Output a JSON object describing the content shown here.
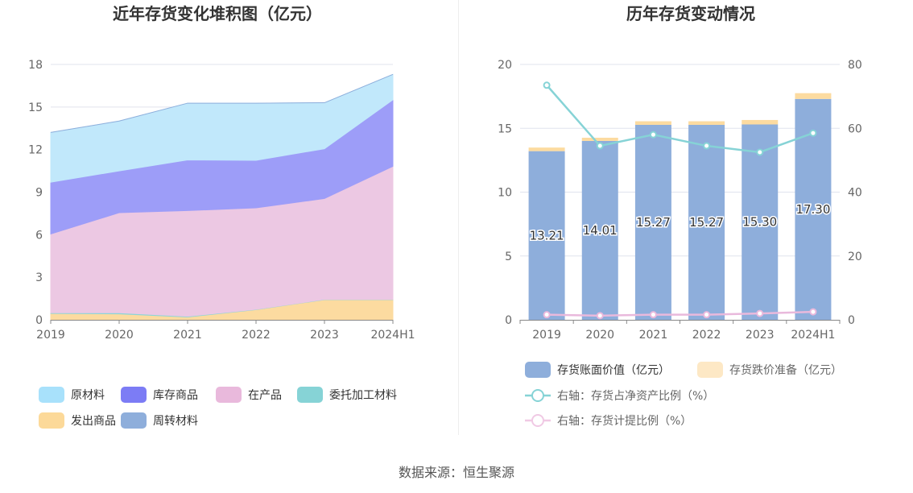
{
  "source_text": "数据来源：恒生聚源",
  "chart_data": [
    {
      "type": "area",
      "stacked": true,
      "title": "近年存货变化堆积图（亿元）",
      "categories": [
        "2019",
        "2020",
        "2021",
        "2022",
        "2023",
        "2024H1"
      ],
      "ylim": [
        0,
        18
      ],
      "yticks": [
        0,
        3,
        6,
        9,
        12,
        15,
        18
      ],
      "legend_position": "bottom",
      "series": [
        {
          "name": "发出商品",
          "color": "#fcdba0",
          "values": [
            0.45,
            0.42,
            0.2,
            0.72,
            1.42,
            1.42
          ]
        },
        {
          "name": "委托加工材料",
          "color": "#8dd5d8",
          "values": [
            0.05,
            0.08,
            0.05,
            0.02,
            0.02,
            0.02
          ]
        },
        {
          "name": "在产品",
          "color": "#ecc8e3",
          "values": [
            5.55,
            7.05,
            7.45,
            7.15,
            7.11,
            9.38
          ]
        },
        {
          "name": "库存商品",
          "color": "#9d9df8",
          "values": [
            3.65,
            2.95,
            3.57,
            3.35,
            3.51,
            4.69
          ]
        },
        {
          "name": "原材料",
          "color": "#c1e8fb",
          "values": [
            3.51,
            3.51,
            4.0,
            4.03,
            3.24,
            1.79
          ]
        },
        {
          "name": "周转材料",
          "color": "#8eaedb",
          "values": [
            0,
            0,
            0,
            0,
            0,
            0
          ]
        }
      ],
      "legend_order": [
        "原材料",
        "库存商品",
        "在产品",
        "委托加工材料",
        "发出商品",
        "周转材料"
      ],
      "legend_colors": {
        "原材料": "#a8e1fb",
        "库存商品": "#7c7cf5",
        "在产品": "#e9b9dc",
        "委托加工材料": "#86d3d6",
        "发出商品": "#fcd999",
        "周转材料": "#8eaedb"
      }
    },
    {
      "type": "bar",
      "stacked": true,
      "title": "历年存货变动情况",
      "categories": [
        "2019",
        "2020",
        "2021",
        "2022",
        "2023",
        "2024H1"
      ],
      "ylim": [
        0,
        20
      ],
      "yticks": [
        0,
        5,
        10,
        15,
        20
      ],
      "y2lim": [
        0,
        80
      ],
      "y2ticks": [
        0,
        20,
        40,
        60,
        80
      ],
      "legend_position": "bottom",
      "series": [
        {
          "name": "存货账面价值（亿元）",
          "color": "#8eaedb",
          "values": [
            13.21,
            14.01,
            15.27,
            15.27,
            15.3,
            17.3
          ],
          "labels": [
            "13.21",
            "14.01",
            "15.27",
            "15.27",
            "15.30",
            "17.30"
          ]
        },
        {
          "name": "存货跌价准备（亿元）",
          "color": "#fcdba0",
          "values": [
            0.28,
            0.25,
            0.28,
            0.28,
            0.35,
            0.45
          ]
        }
      ],
      "lines": [
        {
          "name": "右轴：存货占净资产比例（%）",
          "axis": "right",
          "color": "#86d3d6",
          "values": [
            73.5,
            54.5,
            58.0,
            54.5,
            52.5,
            58.5
          ]
        },
        {
          "name": "右轴：存货计提比例（%）",
          "axis": "right",
          "color": "#e9b9dc",
          "values": [
            1.6,
            1.3,
            1.6,
            1.6,
            2.0,
            2.5
          ]
        }
      ]
    }
  ]
}
